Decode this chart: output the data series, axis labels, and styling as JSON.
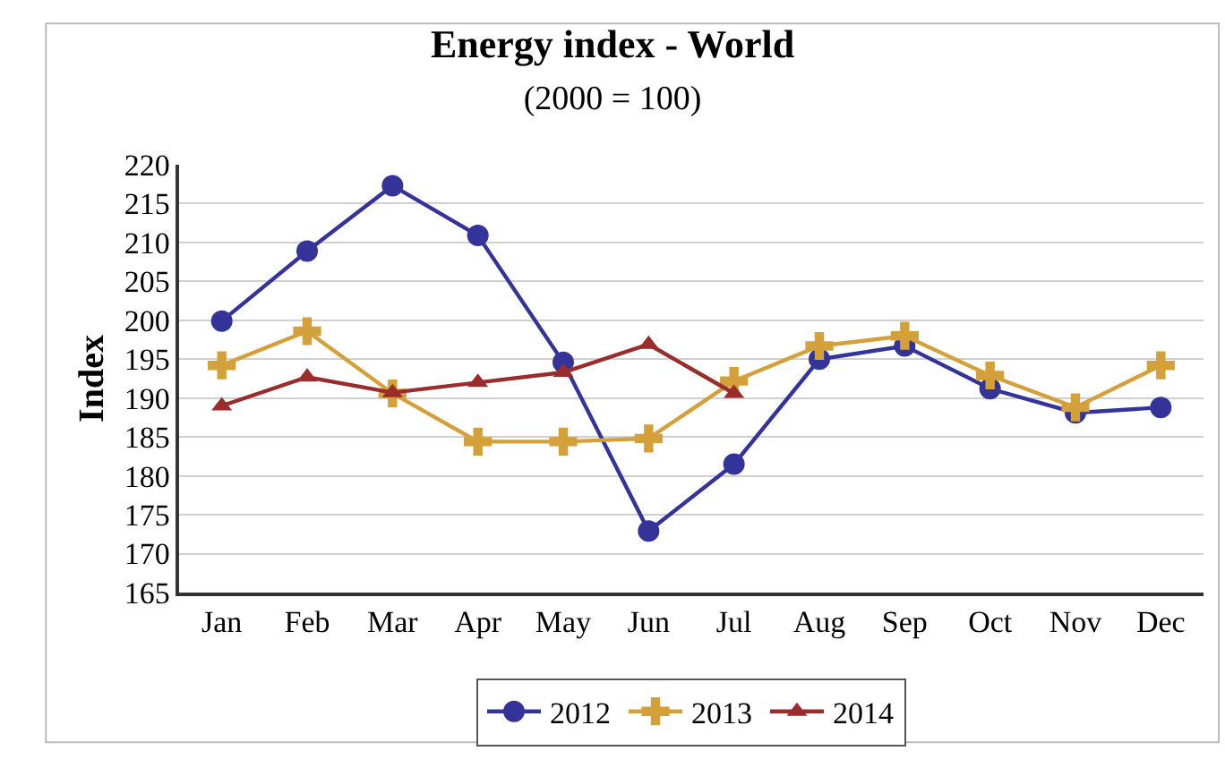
{
  "chart_data": {
    "type": "line",
    "title": "Energy index - World",
    "subtitle": "(2000 = 100)",
    "ylabel": "Index",
    "categories": [
      "Jan",
      "Feb",
      "Mar",
      "Apr",
      "May",
      "Jun",
      "Jul",
      "Aug",
      "Sep",
      "Oct",
      "Nov",
      "Dec"
    ],
    "series": [
      {
        "name": "2012",
        "color": "#333399",
        "marker": "circle",
        "values": [
          199.9,
          208.9,
          217.3,
          210.9,
          194.6,
          172.9,
          181.5,
          195.0,
          196.7,
          191.2,
          188.1,
          188.8
        ]
      },
      {
        "name": "2013",
        "color": "#d4a03a",
        "marker": "cross",
        "values": [
          194.2,
          198.6,
          190.6,
          184.4,
          184.4,
          184.8,
          192.2,
          196.7,
          198.0,
          192.9,
          188.8,
          194.2
        ]
      },
      {
        "name": "2014",
        "color": "#9b2c2c",
        "marker": "triangle",
        "values": [
          189.0,
          192.7,
          190.7,
          192.0,
          193.3,
          196.9,
          190.6,
          null,
          null,
          null,
          null,
          null
        ]
      }
    ],
    "ylim": [
      165,
      220
    ],
    "yticks": [
      165,
      170,
      175,
      180,
      185,
      190,
      195,
      200,
      205,
      210,
      215,
      220
    ],
    "grid": "y",
    "legend": "bottom",
    "line_style": "solid"
  }
}
